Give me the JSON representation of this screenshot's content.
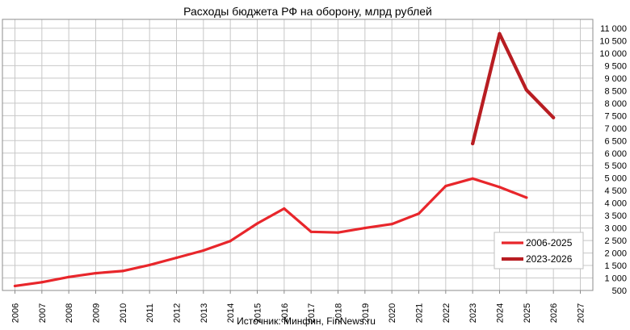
{
  "chart_data": {
    "type": "line",
    "title": "Расходы бюджета РФ на оборону, млрд рублей",
    "source": "Источник: Минфин, FinNews.ru",
    "x": [
      2006,
      2007,
      2008,
      2009,
      2010,
      2011,
      2012,
      2013,
      2014,
      2015,
      2016,
      2017,
      2018,
      2019,
      2020,
      2021,
      2022,
      2023,
      2024,
      2025,
      2026,
      2027
    ],
    "x_tick_labels": [
      "2006",
      "2007",
      "2008",
      "2009",
      "2010",
      "2011",
      "2012",
      "2013",
      "2014",
      "2015",
      "2016",
      "2017",
      "2018",
      "2019",
      "2020",
      "2021",
      "2022",
      "2023",
      "2024",
      "2025",
      "2026",
      "2027"
    ],
    "ylim": [
      500,
      11000
    ],
    "y_ticks": [
      500,
      1000,
      1500,
      2000,
      2500,
      3000,
      3500,
      4000,
      4500,
      5000,
      5500,
      6000,
      6500,
      7000,
      7500,
      8000,
      8500,
      9000,
      9500,
      10000,
      10500,
      11000
    ],
    "y_tick_labels": [
      "500",
      "1 000",
      "1 500",
      "2 000",
      "2 500",
      "3 000",
      "3 500",
      "4 000",
      "4 500",
      "5 000",
      "5 500",
      "6 000",
      "6 500",
      "7 000",
      "7 500",
      "8 000",
      "8 500",
      "9 000",
      "9 500",
      "10 000",
      "10 500",
      "11 000"
    ],
    "grid": true,
    "legend_position": "bottom-right",
    "series": [
      {
        "name": "2006-2025",
        "color": "#e8262b",
        "x": [
          2006,
          2007,
          2008,
          2009,
          2010,
          2011,
          2012,
          2013,
          2014,
          2015,
          2016,
          2017,
          2018,
          2019,
          2020,
          2021,
          2022,
          2023,
          2024,
          2025
        ],
        "values": [
          680,
          830,
          1040,
          1190,
          1280,
          1520,
          1810,
          2100,
          2480,
          3180,
          3780,
          2850,
          2820,
          3000,
          3160,
          3580,
          4680,
          4980,
          4640,
          4220
        ]
      },
      {
        "name": "2023-2026",
        "color": "#b81d22",
        "x": [
          2023,
          2024,
          2025,
          2026
        ],
        "values": [
          6380,
          10780,
          8530,
          7420
        ]
      }
    ]
  }
}
